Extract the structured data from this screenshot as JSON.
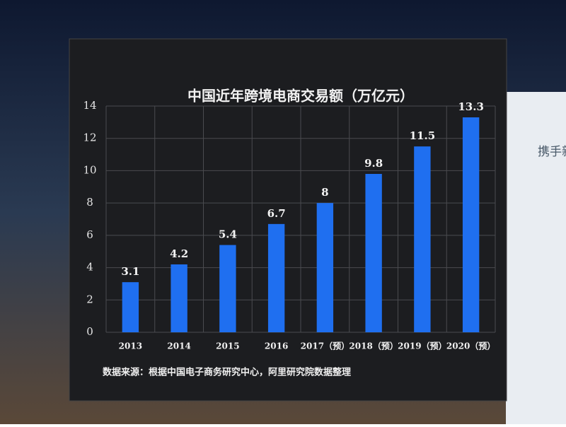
{
  "chart_data": {
    "type": "bar",
    "title": "中国近年跨境电商交易额（万亿元）",
    "categories": [
      "2013",
      "2014",
      "2015",
      "2016",
      "2017（预）",
      "2018（预）",
      "2019（预）",
      "2020（预）"
    ],
    "values": [
      3.1,
      4.2,
      5.4,
      6.7,
      8,
      9.8,
      11.5,
      13.3
    ],
    "color": "#1f6ff0",
    "ylim": [
      0,
      14
    ],
    "yticks": [
      0,
      2,
      4,
      6,
      8,
      10,
      12,
      14
    ],
    "grid": true,
    "source": "数据来源：根据中国电子商务研究中心，阿里研究院数据整理"
  },
  "side_text": "携手新"
}
